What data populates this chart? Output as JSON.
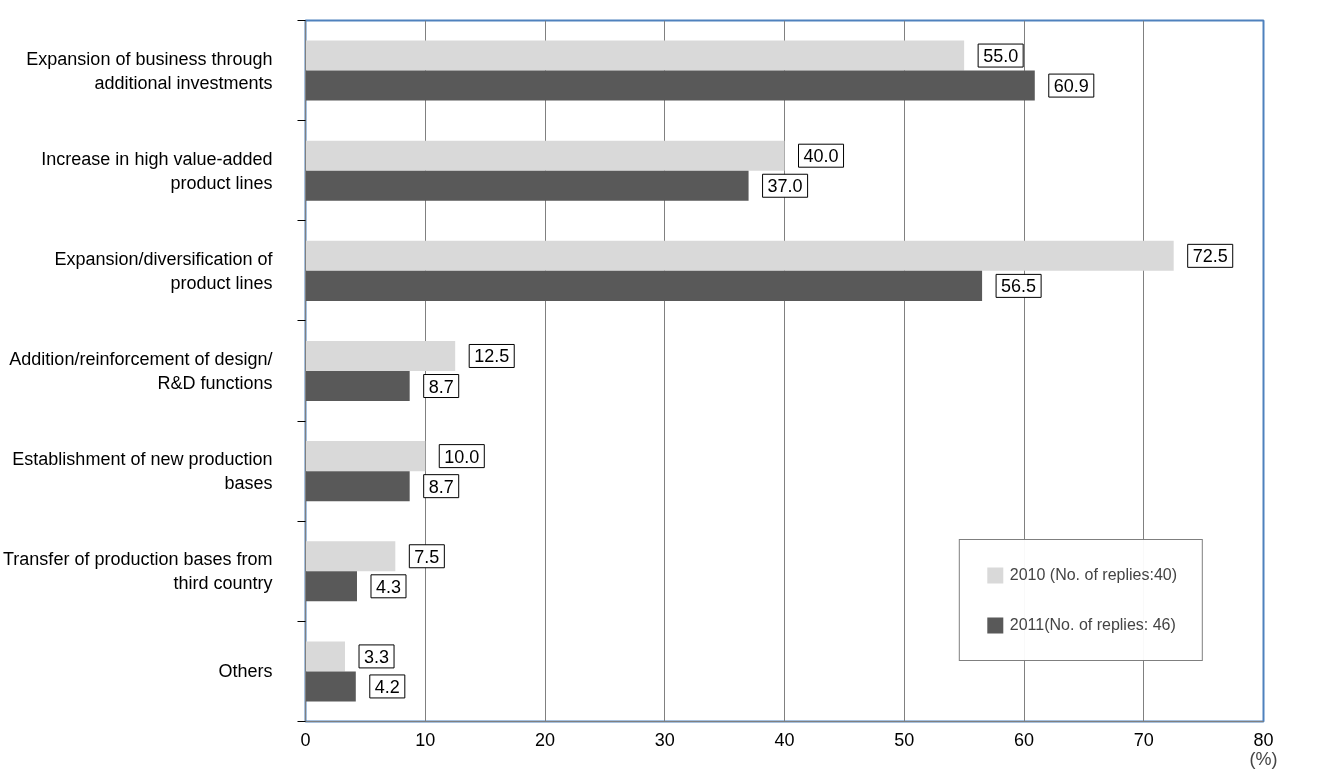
{
  "chart_data": {
    "type": "bar",
    "orientation": "horizontal",
    "xlabel": "(%)",
    "categories": [
      "Expansion of business through additional investments",
      "Increase in high value-added product lines",
      "Expansion/diversification of product lines",
      "Addition/reinforcement of design/ R&D functions",
      "Establishment of new production bases",
      "Transfer of production bases from third country",
      "Others"
    ],
    "series": [
      {
        "name": "2010 (No. of replies:40)",
        "color": "#d9d9d9",
        "values": [
          55.0,
          40.0,
          72.5,
          12.5,
          10.0,
          7.5,
          3.3
        ],
        "value_labels": [
          "55.0",
          "40.0",
          "72.5",
          "12.5",
          "10.0",
          "7.5",
          "3.3"
        ]
      },
      {
        "name": "2011(No. of replies: 46)",
        "color": "#595959",
        "values": [
          60.9,
          37.0,
          56.5,
          8.7,
          8.7,
          4.3,
          4.2
        ],
        "value_labels": [
          "60.9",
          "37.0",
          "56.5",
          "8.7",
          "8.7",
          "4.3",
          "4.2"
        ]
      }
    ],
    "xlim": [
      0,
      80
    ],
    "xticks": [
      0,
      10,
      20,
      30,
      40,
      50,
      60,
      70,
      80
    ],
    "grid": "x",
    "legend": "bottom right"
  }
}
